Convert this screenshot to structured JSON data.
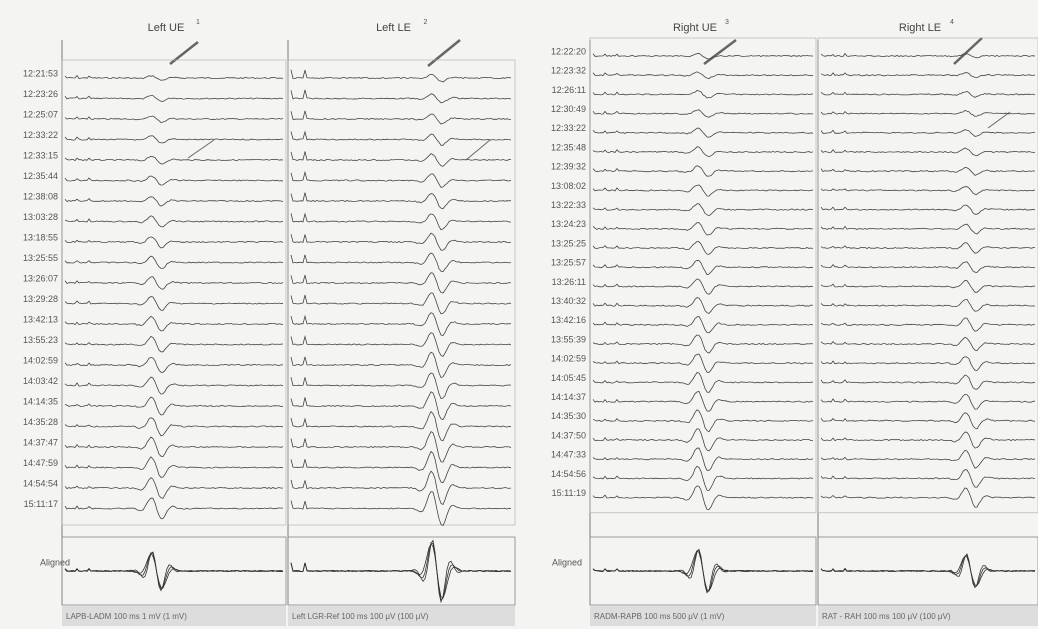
{
  "panels": [
    {
      "title": "Left UE",
      "note": "1",
      "footer": "LAPB-LADM 100 ms 1 mV (1 mV)"
    },
    {
      "title": "Left LE",
      "note": "2",
      "footer": "Left LGR-Ref 100 ms 100 μV (100 μV)"
    },
    {
      "title": "Right UE",
      "note": "3",
      "footer": "RADM-RAPB 100 ms 500 μV (1 mV)"
    },
    {
      "title": "Right LE",
      "note": "4",
      "footer": "RAT - RAH 100 ms 100 μV (100 μV)"
    }
  ],
  "times_left": [
    "12:21:53",
    "12:23:26",
    "12:25:07",
    "12:33:22",
    "12:33:15",
    "12:35:44",
    "12:38:08",
    "13:03:28",
    "13:18:55",
    "13:25:55",
    "13:26:07",
    "13:29:28",
    "13:42:13",
    "13:55:23",
    "14:02:59",
    "14:03:42",
    "14:14:35",
    "14:35:28",
    "14:37:47",
    "14:47:59",
    "14:54:54",
    "15:11:17"
  ],
  "times_right": [
    "12:22:20",
    "12:23:32",
    "12:26:11",
    "12:30:49",
    "12:33:22",
    "12:35:48",
    "12:39:32",
    "13:08:02",
    "13:22:33",
    "13:24:23",
    "13:25:25",
    "13:25:57",
    "13:26:11",
    "13:40:32",
    "13:42:16",
    "13:55:39",
    "14:02:59",
    "14:05:45",
    "14:14:37",
    "14:35:30",
    "14:37:50",
    "14:47:33",
    "14:54:56",
    "15:11:19"
  ],
  "aligned_left": "Aligned",
  "aligned_right": "Aligned"
}
